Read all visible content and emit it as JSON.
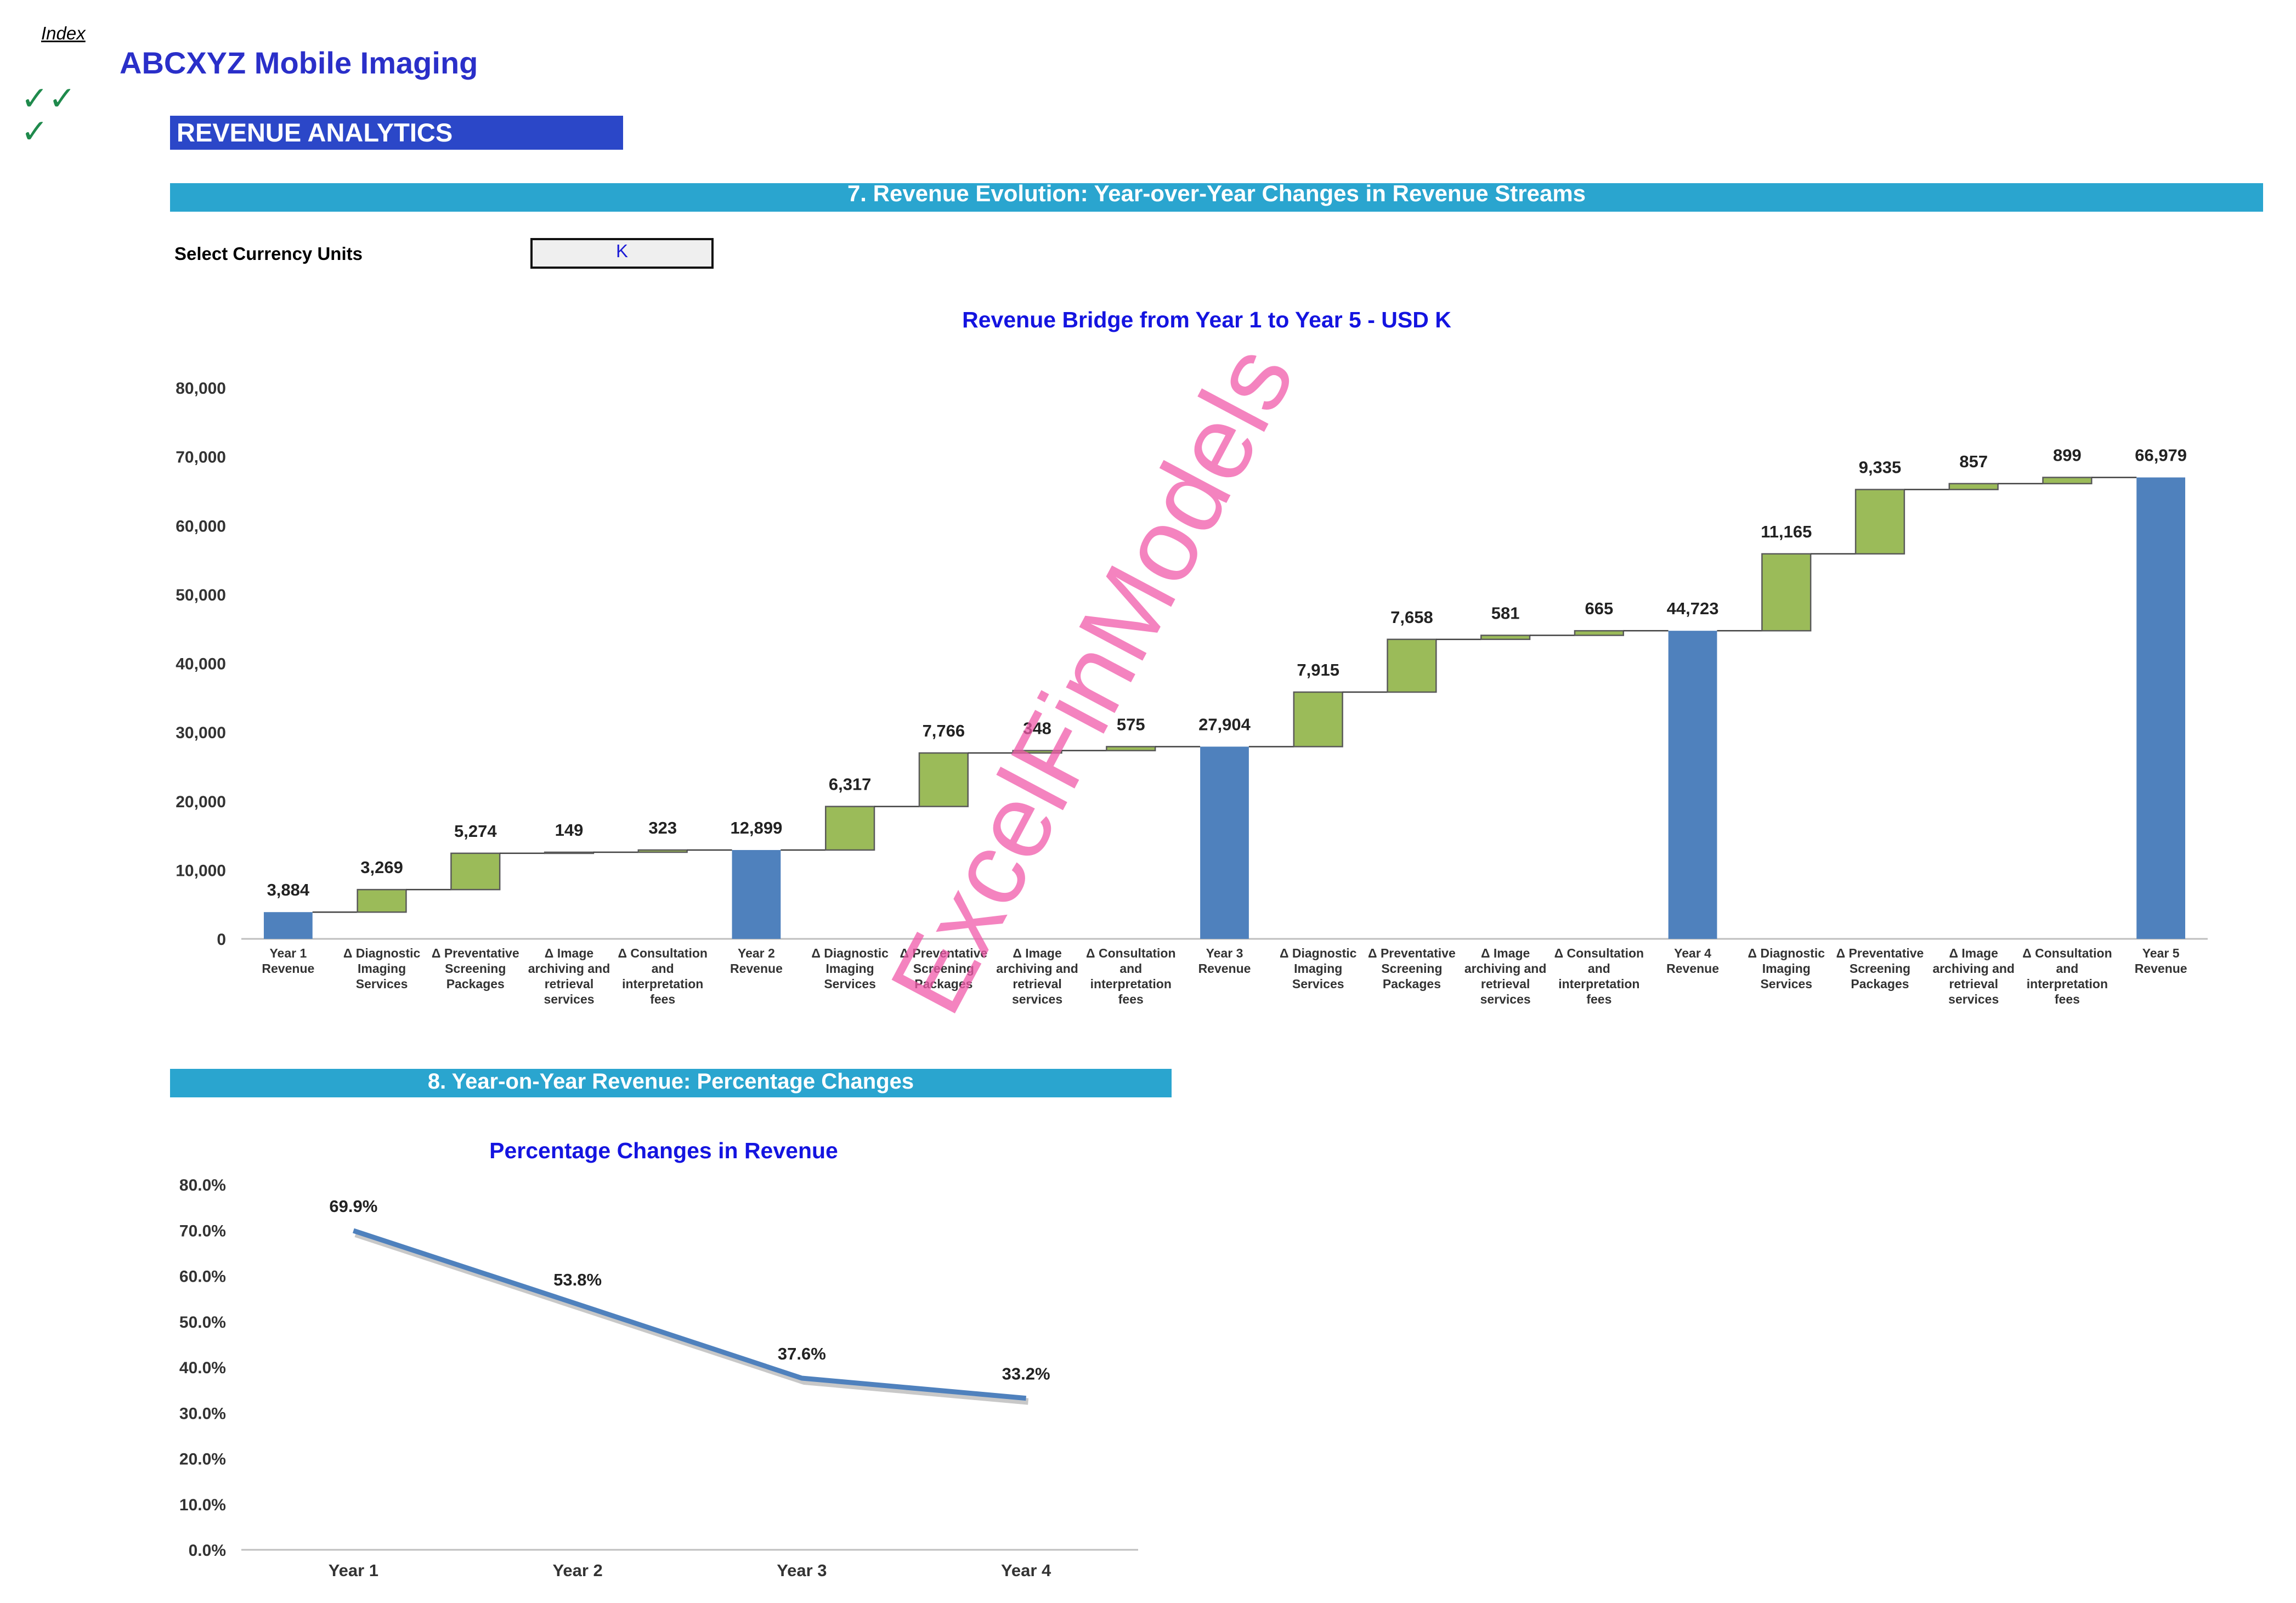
{
  "nav": {
    "index_label": "Index"
  },
  "header": {
    "company": "ABCXYZ Mobile Imaging",
    "section_title": "REVENUE ANALYTICS",
    "checks": [
      "✓✓",
      "✓"
    ]
  },
  "section7": {
    "band_title": "7. Revenue Evolution: Year-over-Year Changes in Revenue Streams",
    "currency_label": "Select Currency Units",
    "currency_value": "K"
  },
  "section8": {
    "band_title": "8.  Year-on-Year Revenue: Percentage Changes"
  },
  "watermark": "ExcelFinModels",
  "colors": {
    "total_bar": "#4f81bd",
    "delta_bar": "#9bbb59",
    "line": "#4f81bd",
    "band": "#2aa5cf",
    "title_blue": "#1414e0"
  },
  "chart_data": [
    {
      "type": "bar",
      "subtype": "waterfall",
      "title": "Revenue Bridge from Year 1 to Year 5 - USD K",
      "ylim": [
        0,
        80000
      ],
      "yticks": [
        "0",
        "10,000",
        "20,000",
        "30,000",
        "40,000",
        "50,000",
        "60,000",
        "70,000",
        "80,000"
      ],
      "categories": [
        [
          "Year 1",
          "Revenue"
        ],
        [
          "Δ Diagnostic",
          "Imaging",
          "Services"
        ],
        [
          "Δ Preventative",
          "Screening",
          "Packages"
        ],
        [
          "Δ Image",
          "archiving and",
          "retrieval",
          "services"
        ],
        [
          "Δ Consultation",
          "and",
          "interpretation",
          "fees"
        ],
        [
          "Year 2",
          "Revenue"
        ],
        [
          "Δ Diagnostic",
          "Imaging",
          "Services"
        ],
        [
          "Δ Preventative",
          "Screening",
          "Packages"
        ],
        [
          "Δ Image",
          "archiving and",
          "retrieval",
          "services"
        ],
        [
          "Δ Consultation",
          "and",
          "interpretation",
          "fees"
        ],
        [
          "Year 3",
          "Revenue"
        ],
        [
          "Δ Diagnostic",
          "Imaging",
          "Services"
        ],
        [
          "Δ Preventative",
          "Screening",
          "Packages"
        ],
        [
          "Δ Image",
          "archiving and",
          "retrieval",
          "services"
        ],
        [
          "Δ Consultation",
          "and",
          "interpretation",
          "fees"
        ],
        [
          "Year 4",
          "Revenue"
        ],
        [
          "Δ Diagnostic",
          "Imaging",
          "Services"
        ],
        [
          "Δ Preventative",
          "Screening",
          "Packages"
        ],
        [
          "Δ Image",
          "archiving and",
          "retrieval",
          "services"
        ],
        [
          "Δ Consultation",
          "and",
          "interpretation",
          "fees"
        ],
        [
          "Year 5",
          "Revenue"
        ]
      ],
      "kinds": [
        "total",
        "delta",
        "delta",
        "delta",
        "delta",
        "total",
        "delta",
        "delta",
        "delta",
        "delta",
        "total",
        "delta",
        "delta",
        "delta",
        "delta",
        "total",
        "delta",
        "delta",
        "delta",
        "delta",
        "total"
      ],
      "values": [
        3884,
        3269,
        5274,
        149,
        323,
        12899,
        6317,
        7766,
        348,
        575,
        27904,
        7915,
        7658,
        581,
        665,
        44723,
        11165,
        9335,
        857,
        899,
        66979
      ],
      "labels": [
        "3,884",
        "3,269",
        "5,274",
        "149",
        "323",
        "12,899",
        "6,317",
        "7,766",
        "348",
        "575",
        "27,904",
        "7,915",
        "7,658",
        "581",
        "665",
        "44,723",
        "11,165",
        "9,335",
        "857",
        "899",
        "66,979"
      ],
      "grid": false,
      "legend": "none"
    },
    {
      "type": "line",
      "title": "Percentage Changes in Revenue",
      "categories": [
        "Year 1",
        "Year 2",
        "Year 3",
        "Year 4"
      ],
      "values": [
        69.9,
        53.8,
        37.6,
        33.2
      ],
      "labels": [
        "69.9%",
        "53.8%",
        "37.6%",
        "33.2%"
      ],
      "ylim": [
        0,
        80
      ],
      "yticks": [
        "0.0%",
        "10.0%",
        "20.0%",
        "30.0%",
        "40.0%",
        "50.0%",
        "60.0%",
        "70.0%",
        "80.0%"
      ],
      "grid": false,
      "legend": "none"
    }
  ]
}
